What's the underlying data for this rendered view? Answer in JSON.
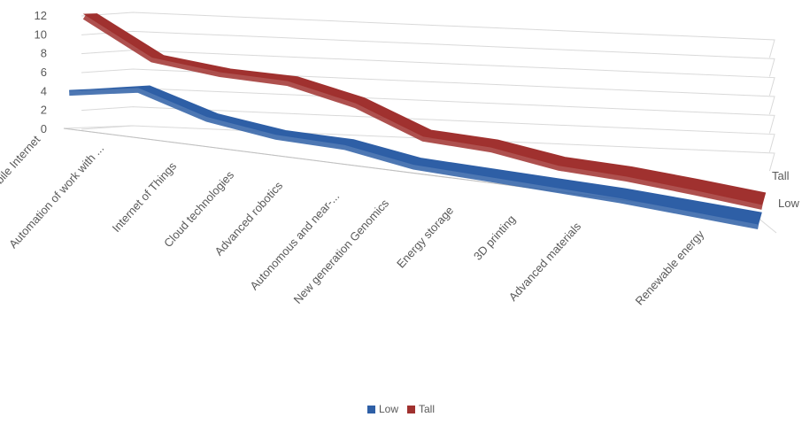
{
  "chart_data": {
    "type": "line",
    "view": "3d",
    "categories": [
      "Mobile Internet",
      "Automation of work with ...",
      "Internet of Things",
      "Cloud technologies",
      "Advanced robotics",
      "Autonomous and near-...",
      "New generation Genomics",
      "Energy storage",
      "3D printing",
      "Advanced materials",
      "Renewable energy"
    ],
    "series": [
      {
        "name": "Low",
        "color": "#2e5fa6",
        "values": [
          4,
          5.2,
          3,
          2,
          1.8,
          0.6,
          0.3,
          0,
          -0.3,
          -0.8,
          -1.3
        ]
      },
      {
        "name": "Tall",
        "color": "#a0312f",
        "values": [
          12,
          8.2,
          7.4,
          7.2,
          5.6,
          2.8,
          2.4,
          1.2,
          0.8,
          0.1,
          -0.7
        ]
      }
    ],
    "ylim": [
      0,
      12
    ],
    "yticks": [
      "0",
      "2",
      "4",
      "6",
      "8",
      "10",
      "12"
    ],
    "depth_labels": [
      "Low",
      "Tall"
    ],
    "legend": [
      "Low",
      "Tall"
    ],
    "legend_position": "bottom",
    "gridlines": true
  }
}
